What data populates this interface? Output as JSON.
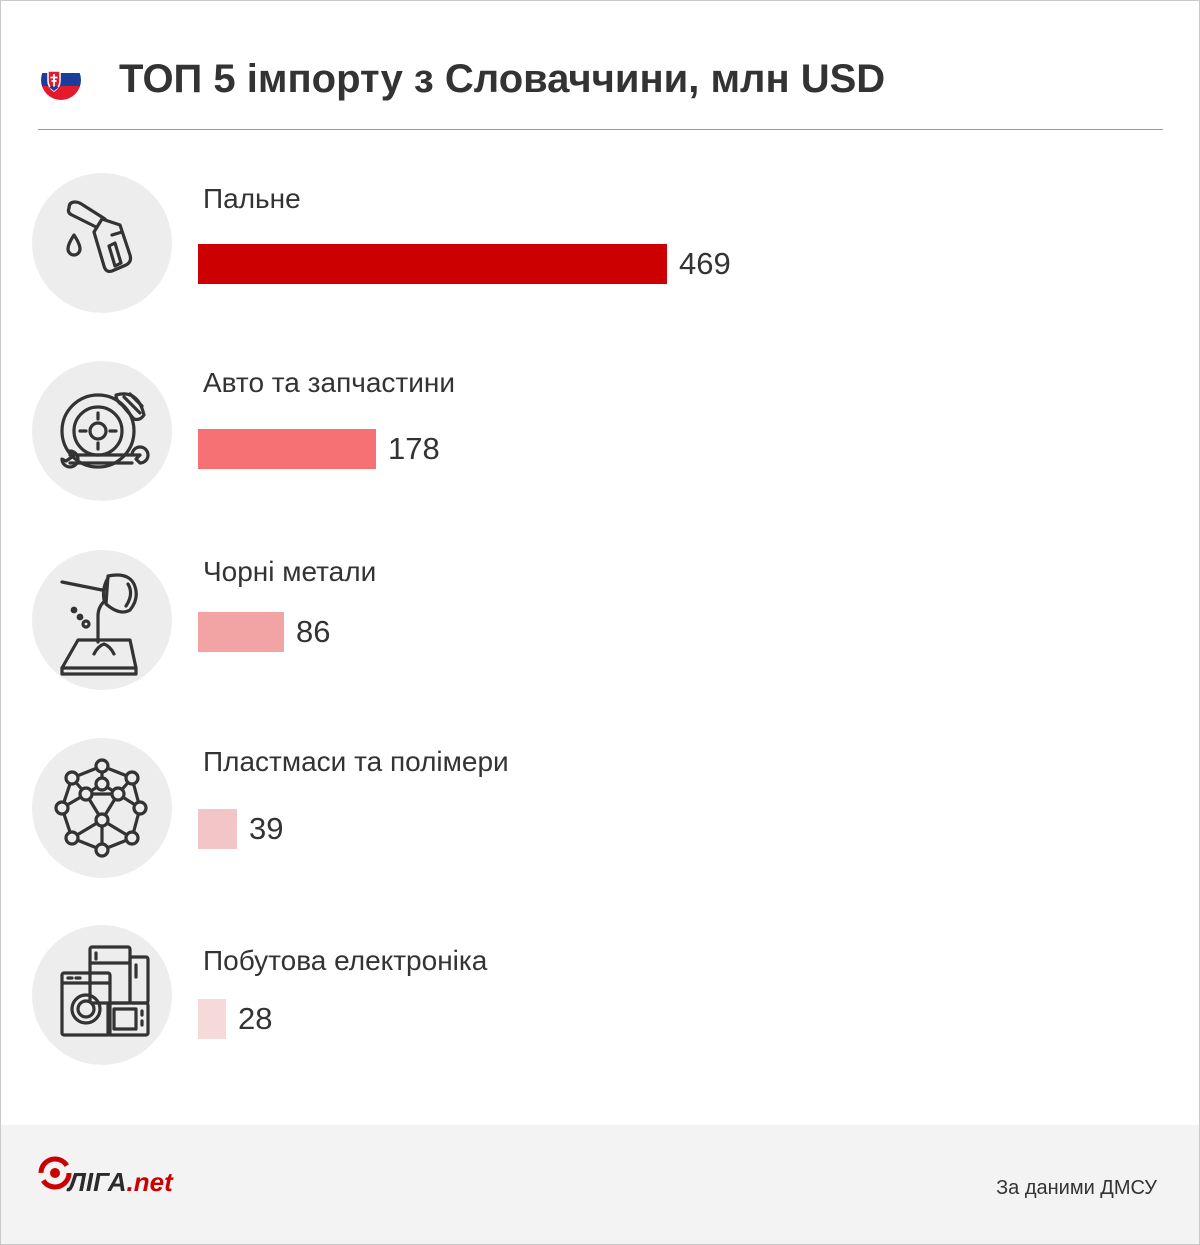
{
  "header": {
    "title": "ТОП 5 імпорту з Словаччини, млн USD",
    "flag_colors": [
      "#ffffff",
      "#1a3d9a",
      "#e21a2c"
    ]
  },
  "chart_data": {
    "type": "bar",
    "orientation": "horizontal",
    "title": "ТОП 5 імпорту з Словаччини, млн USD",
    "categories": [
      "Пальне",
      "Авто та запчастини",
      "Чорні метали",
      "Пластмаси та полімери",
      "Побутова електроніка"
    ],
    "values": [
      469,
      178,
      86,
      39,
      28
    ],
    "icons": [
      "fuel-nozzle-icon",
      "car-parts-icon",
      "metal-pouring-icon",
      "polymer-molecule-icon",
      "home-appliances-icon"
    ],
    "colors": [
      "#cc0000",
      "#f57174",
      "#f2a3a4",
      "#f2c6c6",
      "#f6d9d9"
    ],
    "xlim": [
      0,
      469
    ],
    "grid": false
  },
  "footer": {
    "logo_main": "ЛІГА",
    "logo_suffix": ".net",
    "source": "За даними ДМСУ"
  }
}
